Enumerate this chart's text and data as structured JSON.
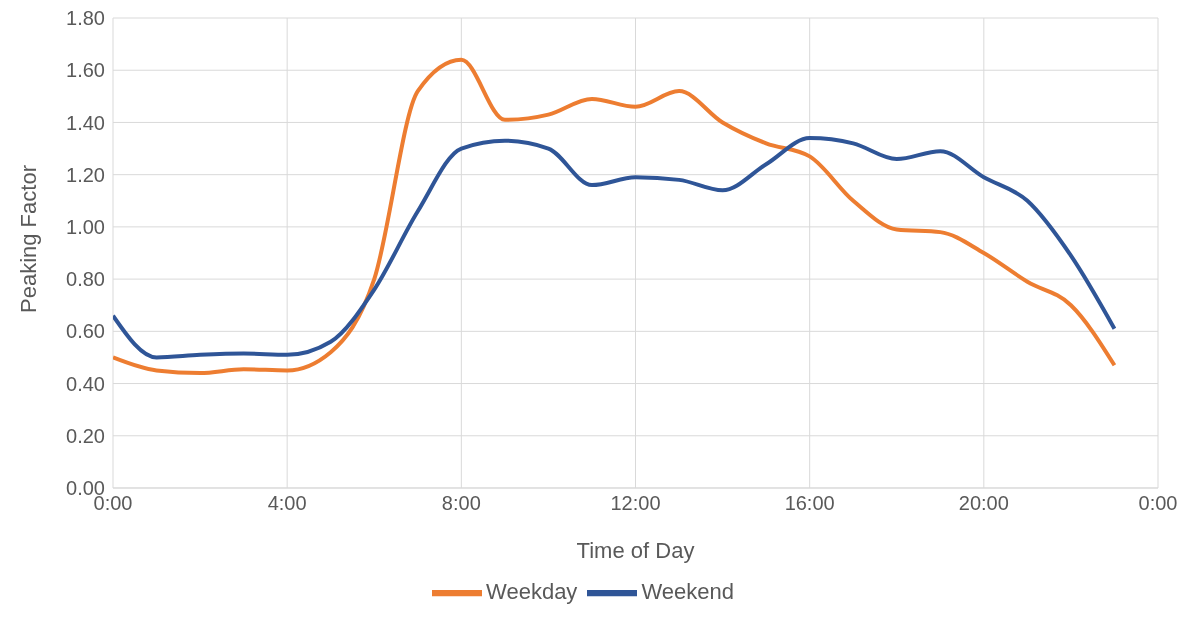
{
  "chart_data": {
    "type": "line",
    "xlabel": "Time of Day",
    "ylabel": "Peaking Factor",
    "x": [
      0,
      1,
      2,
      3,
      4,
      5,
      6,
      7,
      8,
      9,
      10,
      11,
      12,
      13,
      14,
      15,
      16,
      17,
      18,
      19,
      20,
      21,
      22,
      23
    ],
    "series": [
      {
        "name": "Weekday",
        "color": "#ed7d31",
        "values": [
          0.5,
          0.45,
          0.44,
          0.455,
          0.45,
          0.52,
          0.8,
          1.52,
          1.64,
          1.41,
          1.43,
          1.49,
          1.46,
          1.52,
          1.4,
          1.32,
          1.27,
          1.1,
          0.99,
          0.98,
          0.9,
          0.79,
          0.7,
          0.47
        ]
      },
      {
        "name": "Weekend",
        "color": "#2f5597",
        "values": [
          0.66,
          0.5,
          0.51,
          0.515,
          0.51,
          0.56,
          0.76,
          1.06,
          1.3,
          1.33,
          1.3,
          1.16,
          1.19,
          1.18,
          1.14,
          1.24,
          1.34,
          1.32,
          1.26,
          1.29,
          1.19,
          1.1,
          0.89,
          0.61
        ]
      }
    ],
    "xlim": [
      0,
      24
    ],
    "xticks": [
      {
        "value": 0,
        "label": "0:00"
      },
      {
        "value": 4,
        "label": "4:00"
      },
      {
        "value": 8,
        "label": "8:00"
      },
      {
        "value": 12,
        "label": "12:00"
      },
      {
        "value": 16,
        "label": "16:00"
      },
      {
        "value": 20,
        "label": "20:00"
      },
      {
        "value": 24,
        "label": "0:00"
      }
    ],
    "ylim": [
      0,
      1.8
    ],
    "yticks": [
      {
        "value": 0,
        "label": "0.00"
      },
      {
        "value": 0.2,
        "label": "0.20"
      },
      {
        "value": 0.4,
        "label": "0.40"
      },
      {
        "value": 0.6,
        "label": "0.60"
      },
      {
        "value": 0.8,
        "label": "0.80"
      },
      {
        "value": 1,
        "label": "1.00"
      },
      {
        "value": 1.2,
        "label": "1.20"
      },
      {
        "value": 1.4,
        "label": "1.40"
      },
      {
        "value": 1.6,
        "label": "1.60"
      },
      {
        "value": 1.8,
        "label": "1.80"
      }
    ],
    "grid": true,
    "legend": "bottom",
    "marker": "none",
    "line_style": "solid"
  }
}
